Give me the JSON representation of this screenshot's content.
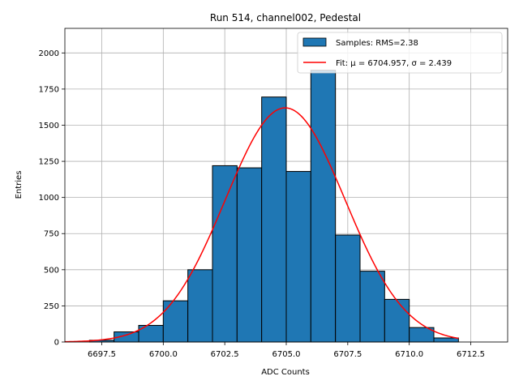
{
  "chart_data": {
    "type": "bar",
    "title": "Run 514, channel002, Pedestal",
    "xlabel": "ADC Counts",
    "ylabel": "Entries",
    "xlim": [
      6696.0,
      6714.0
    ],
    "ylim": [
      0,
      2170
    ],
    "xticks": [
      6697.5,
      6700.0,
      6702.5,
      6705.0,
      6707.5,
      6710.0,
      6712.5
    ],
    "xtick_labels": [
      "6697.5",
      "6700.0",
      "6702.5",
      "6705.0",
      "6707.5",
      "6710.0",
      "6712.5"
    ],
    "yticks": [
      0,
      250,
      500,
      750,
      1000,
      1250,
      1500,
      1750,
      2000
    ],
    "ytick_labels": [
      "0",
      "250",
      "500",
      "750",
      "1000",
      "1250",
      "1500",
      "1750",
      "2000"
    ],
    "grid": true,
    "legend_position": "top-right",
    "bins": [
      {
        "left": 6697,
        "right": 6698,
        "value": 12
      },
      {
        "left": 6698,
        "right": 6699,
        "value": 70
      },
      {
        "left": 6699,
        "right": 6700,
        "value": 115
      },
      {
        "left": 6700,
        "right": 6701,
        "value": 285
      },
      {
        "left": 6701,
        "right": 6702,
        "value": 500
      },
      {
        "left": 6702,
        "right": 6703,
        "value": 1220
      },
      {
        "left": 6703,
        "right": 6704,
        "value": 1205
      },
      {
        "left": 6704,
        "right": 6705,
        "value": 1695
      },
      {
        "left": 6705,
        "right": 6706,
        "value": 1180
      },
      {
        "left": 6706,
        "right": 6707,
        "value": 1880
      },
      {
        "left": 6707,
        "right": 6708,
        "value": 740
      },
      {
        "left": 6708,
        "right": 6709,
        "value": 490
      },
      {
        "left": 6709,
        "right": 6710,
        "value": 295
      },
      {
        "left": 6710,
        "right": 6711,
        "value": 100
      },
      {
        "left": 6711,
        "right": 6712,
        "value": 28
      }
    ],
    "fit": {
      "mu": 6704.957,
      "sigma": 2.439,
      "amplitude": 1620,
      "x_range": [
        6696.0,
        6712.0
      ]
    },
    "series": [
      {
        "name": "Samples: RMS=2.38",
        "type": "histogram",
        "color": "#1f77b4"
      },
      {
        "name": "Fit: μ = 6704.957, σ = 2.439",
        "type": "line",
        "color": "#ff0000"
      }
    ]
  }
}
